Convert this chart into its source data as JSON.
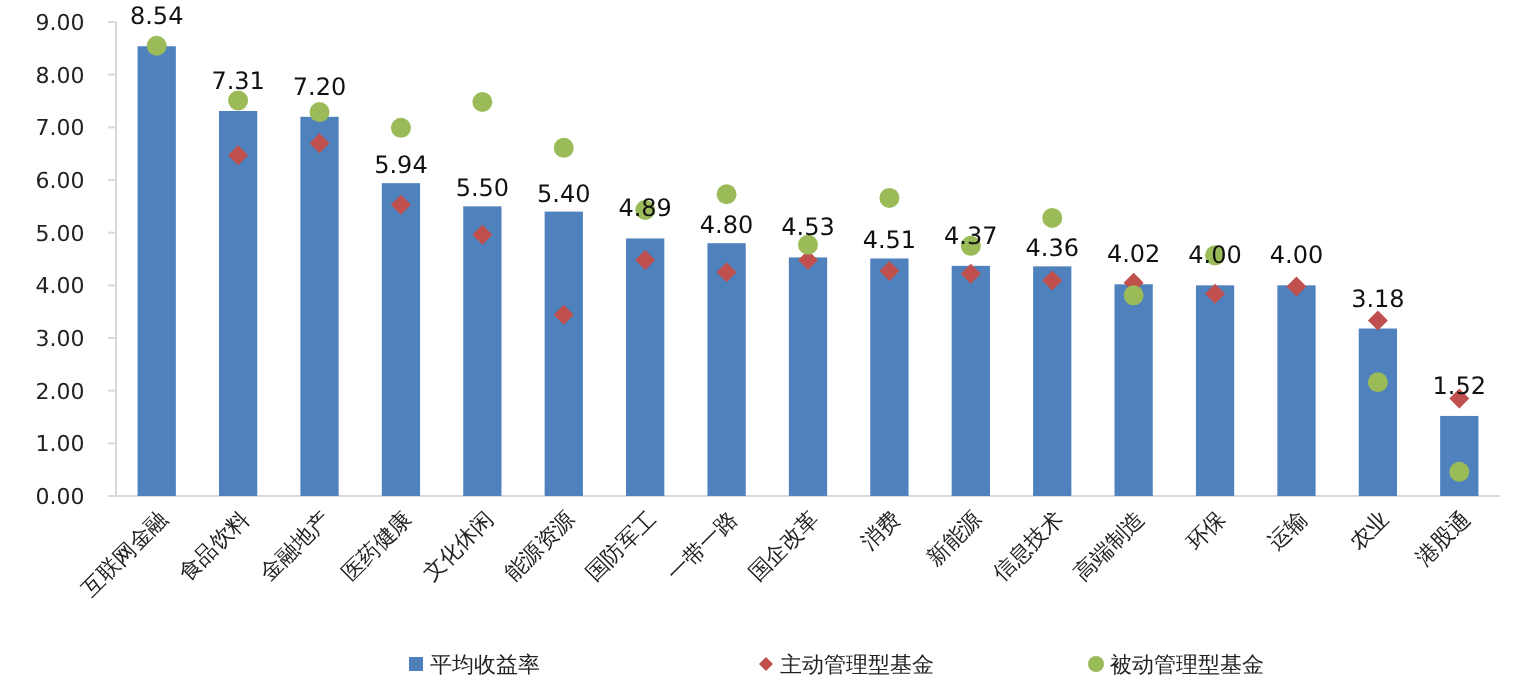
{
  "chart_data": {
    "type": "bar",
    "categories": [
      "互联网金融",
      "食品饮料",
      "金融地产",
      "医药健康",
      "文化休闲",
      "能源资源",
      "国防军工",
      "一带一路",
      "国企改革",
      "消费",
      "新能源",
      "信息技术",
      "高端制造",
      "环保",
      "运输",
      "农业",
      "港股通"
    ],
    "series": [
      {
        "name": "平均收益率",
        "color": "#4f81bd",
        "marker": "square",
        "values": [
          8.54,
          7.31,
          7.2,
          5.94,
          5.5,
          5.4,
          4.89,
          4.8,
          4.53,
          4.51,
          4.37,
          4.36,
          4.02,
          4.0,
          4.0,
          3.18,
          1.52
        ],
        "value_labels": [
          "8.54",
          "7.31",
          "7.20",
          "5.94",
          "5.50",
          "5.40",
          "4.89",
          "4.80",
          "4.53",
          "4.51",
          "4.37",
          "4.36",
          "4.02",
          "4.00",
          "4.00",
          "3.18",
          "1.52"
        ]
      },
      {
        "name": "主动管理型基金",
        "type": "scatter",
        "color": "#c0504d",
        "marker": "diamond",
        "values": [
          null,
          6.47,
          6.7,
          5.53,
          4.96,
          3.44,
          4.48,
          4.25,
          4.48,
          4.27,
          4.22,
          4.09,
          4.05,
          3.84,
          3.98,
          3.33,
          1.85
        ]
      },
      {
        "name": "被动管理型基金",
        "type": "scatter",
        "color": "#9bbb59",
        "marker": "circle",
        "values": [
          8.55,
          7.51,
          7.29,
          6.99,
          7.48,
          6.61,
          5.43,
          5.73,
          4.77,
          5.66,
          4.75,
          5.28,
          3.81,
          4.57,
          null,
          2.16,
          0.46
        ]
      }
    ],
    "ylim": [
      0,
      9
    ],
    "yticks": [
      "0.00",
      "1.00",
      "2.00",
      "3.00",
      "4.00",
      "5.00",
      "6.00",
      "7.00",
      "8.00",
      "9.00"
    ],
    "grid": false,
    "legend": "bottom"
  }
}
